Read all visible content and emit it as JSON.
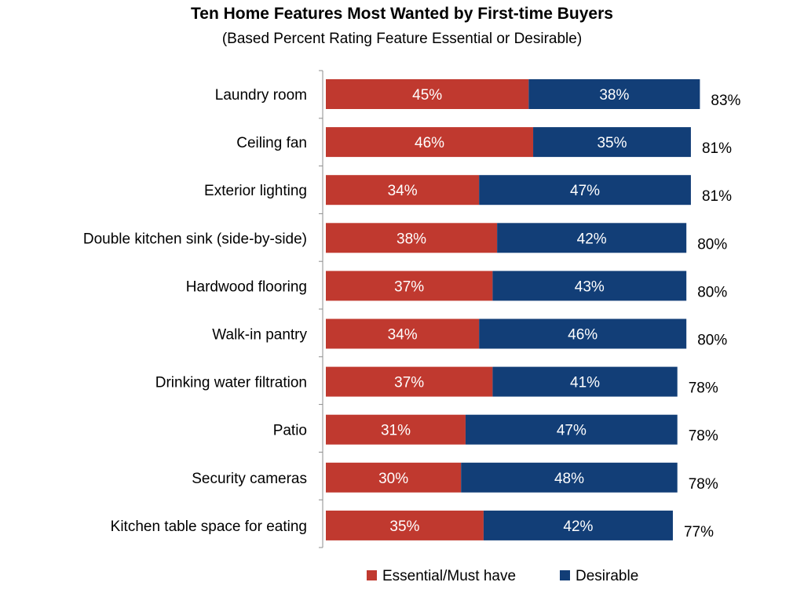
{
  "chart_data": {
    "type": "bar",
    "orientation": "horizontal",
    "stacked": true,
    "title": "Ten Home Features Most Wanted by First-time Buyers",
    "subtitle": "(Based Percent Rating Feature Essential or Desirable)",
    "categories": [
      "Laundry room",
      "Ceiling fan",
      "Exterior lighting",
      "Double kitchen sink (side-by-side)",
      "Hardwood flooring",
      "Walk-in pantry",
      "Drinking water filtration",
      "Patio",
      "Security cameras",
      "Kitchen table space for eating"
    ],
    "series": [
      {
        "name": "Essential/Must have",
        "color": "#c0392f",
        "values": [
          45,
          46,
          34,
          38,
          37,
          34,
          37,
          31,
          30,
          35
        ],
        "labels": [
          "45%",
          "46%",
          "34%",
          "38%",
          "37%",
          "34%",
          "37%",
          "31%",
          "30%",
          "35%"
        ]
      },
      {
        "name": "Desirable",
        "color": "#123e77",
        "values": [
          38,
          35,
          47,
          42,
          43,
          46,
          41,
          47,
          48,
          42
        ],
        "labels": [
          "38%",
          "35%",
          "47%",
          "42%",
          "43%",
          "46%",
          "41%",
          "47%",
          "48%",
          "42%"
        ]
      }
    ],
    "totals": [
      "83%",
      "81%",
      "81%",
      "80%",
      "80%",
      "80%",
      "78%",
      "78%",
      "78%",
      "77%"
    ],
    "legend": "bottom",
    "grid": false
  }
}
